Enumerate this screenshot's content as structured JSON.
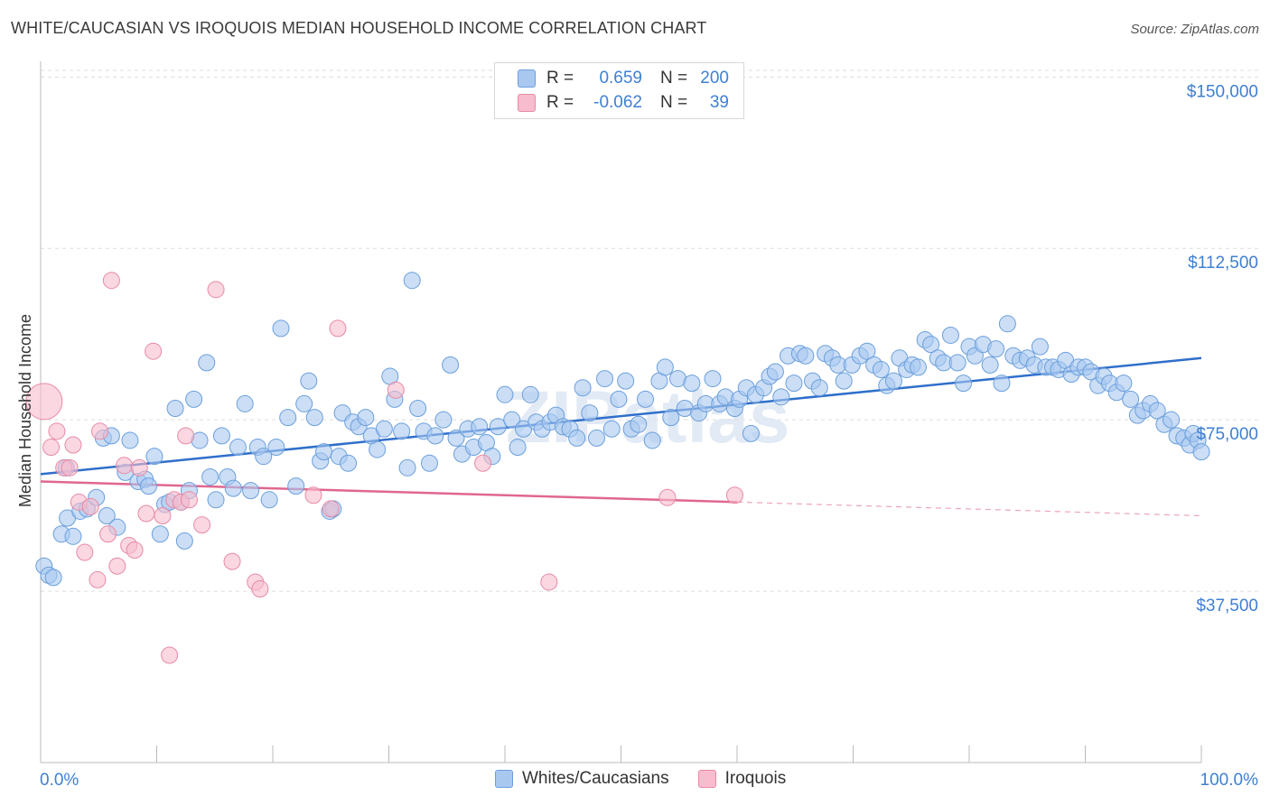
{
  "title": "WHITE/CAUCASIAN VS IROQUOIS MEDIAN HOUSEHOLD INCOME CORRELATION CHART",
  "source": "Source: ZipAtlas.com",
  "watermark": "ZIPatlas",
  "legend": {
    "rows": [
      {
        "r_label": "R =",
        "r_value": "0.659",
        "n_label": "N =",
        "n_value": "200"
      },
      {
        "r_label": "R =",
        "r_value": "-0.062",
        "n_label": "N =",
        "n_value": "39"
      }
    ]
  },
  "bottom_legend": {
    "series1": "Whites/Caucasians",
    "series2": "Iroquois"
  },
  "colors": {
    "blue_fill": "#a9c8f0",
    "blue_stroke": "#6b9fdc",
    "blue_line": "#2f6fcb",
    "pink_fill": "#f7bccd",
    "pink_stroke": "#e88aa6",
    "pink_line": "#e0678f",
    "axis_label": "#3f7fd3",
    "grid": "#dddddd"
  },
  "chart_data": {
    "type": "scatter",
    "title": "WHITE/CAUCASIAN VS IROQUOIS MEDIAN HOUSEHOLD INCOME CORRELATION CHART",
    "xlabel": "",
    "ylabel": "Median Household Income",
    "xlim": [
      0,
      100
    ],
    "ylim": [
      0,
      155000
    ],
    "x_tick_labels": [
      "0.0%",
      "100.0%"
    ],
    "y_ticks": [
      37500,
      75000,
      112500,
      150000
    ],
    "y_tick_labels": [
      "$37,500",
      "$75,000",
      "$112,500",
      "$150,000"
    ],
    "grid": true,
    "legend_position": "top-center",
    "series": [
      {
        "name": "Whites/Caucasians",
        "trend": {
          "x": [
            0,
            100
          ],
          "y": [
            63100,
            88500
          ],
          "dashed_from": null
        },
        "points": [
          [
            0.3,
            43000
          ],
          [
            0.7,
            41000
          ],
          [
            1.1,
            40500
          ],
          [
            1.8,
            50000
          ],
          [
            2.3,
            53500
          ],
          [
            2.2,
            64500
          ],
          [
            2.8,
            49500
          ],
          [
            3.4,
            55000
          ],
          [
            4.0,
            55500
          ],
          [
            4.8,
            58000
          ],
          [
            5.4,
            71000
          ],
          [
            5.7,
            54000
          ],
          [
            6.1,
            71500
          ],
          [
            6.6,
            51500
          ],
          [
            7.3,
            63500
          ],
          [
            7.7,
            70500
          ],
          [
            8.4,
            61500
          ],
          [
            9.0,
            62000
          ],
          [
            9.3,
            60500
          ],
          [
            9.8,
            67000
          ],
          [
            10.3,
            50000
          ],
          [
            10.7,
            56500
          ],
          [
            11.1,
            57000
          ],
          [
            11.6,
            77500
          ],
          [
            12.1,
            57000
          ],
          [
            12.4,
            48500
          ],
          [
            12.8,
            59500
          ],
          [
            13.2,
            79500
          ],
          [
            13.7,
            70500
          ],
          [
            14.3,
            87500
          ],
          [
            14.6,
            62500
          ],
          [
            15.1,
            57500
          ],
          [
            15.6,
            71500
          ],
          [
            16.1,
            62500
          ],
          [
            16.6,
            60000
          ],
          [
            17.0,
            69000
          ],
          [
            17.6,
            78500
          ],
          [
            18.1,
            59500
          ],
          [
            18.7,
            69000
          ],
          [
            19.2,
            67000
          ],
          [
            19.7,
            57500
          ],
          [
            20.3,
            69000
          ],
          [
            20.7,
            95000
          ],
          [
            21.3,
            75500
          ],
          [
            22.0,
            60500
          ],
          [
            22.7,
            78500
          ],
          [
            23.1,
            83500
          ],
          [
            23.6,
            75500
          ],
          [
            24.1,
            66000
          ],
          [
            24.4,
            68000
          ],
          [
            24.9,
            55000
          ],
          [
            25.2,
            55500
          ],
          [
            25.7,
            67000
          ],
          [
            26.0,
            76500
          ],
          [
            26.5,
            65500
          ],
          [
            26.9,
            74500
          ],
          [
            27.4,
            73500
          ],
          [
            28.0,
            75500
          ],
          [
            28.5,
            71500
          ],
          [
            29.0,
            68500
          ],
          [
            29.6,
            73000
          ],
          [
            30.1,
            84500
          ],
          [
            30.5,
            79500
          ],
          [
            31.1,
            72500
          ],
          [
            31.6,
            64500
          ],
          [
            32.0,
            105500
          ],
          [
            32.5,
            77500
          ],
          [
            33.0,
            72500
          ],
          [
            33.5,
            65500
          ],
          [
            34.0,
            71500
          ],
          [
            34.7,
            75000
          ],
          [
            35.3,
            87000
          ],
          [
            35.8,
            71000
          ],
          [
            36.3,
            67500
          ],
          [
            36.8,
            73000
          ],
          [
            37.3,
            69000
          ],
          [
            37.8,
            73500
          ],
          [
            38.4,
            70000
          ],
          [
            38.9,
            67000
          ],
          [
            39.4,
            73500
          ],
          [
            40.0,
            80500
          ],
          [
            40.6,
            75000
          ],
          [
            41.1,
            69000
          ],
          [
            41.6,
            73000
          ],
          [
            42.2,
            80500
          ],
          [
            42.7,
            74500
          ],
          [
            43.2,
            73000
          ],
          [
            43.9,
            74500
          ],
          [
            44.4,
            76000
          ],
          [
            45.0,
            73500
          ],
          [
            45.6,
            73000
          ],
          [
            46.2,
            71000
          ],
          [
            46.7,
            82000
          ],
          [
            47.3,
            76500
          ],
          [
            47.9,
            71000
          ],
          [
            48.6,
            84000
          ],
          [
            49.2,
            73000
          ],
          [
            49.8,
            79500
          ],
          [
            50.4,
            83500
          ],
          [
            50.9,
            73000
          ],
          [
            51.5,
            74000
          ],
          [
            52.1,
            79500
          ],
          [
            52.7,
            70500
          ],
          [
            53.3,
            83500
          ],
          [
            53.8,
            86500
          ],
          [
            54.3,
            75500
          ],
          [
            54.9,
            84000
          ],
          [
            55.5,
            77500
          ],
          [
            56.1,
            83000
          ],
          [
            56.7,
            76500
          ],
          [
            57.3,
            78500
          ],
          [
            57.9,
            84000
          ],
          [
            58.5,
            78500
          ],
          [
            59.0,
            80000
          ],
          [
            59.8,
            77500
          ],
          [
            60.2,
            79500
          ],
          [
            60.8,
            82000
          ],
          [
            61.2,
            72000
          ],
          [
            61.6,
            80500
          ],
          [
            62.3,
            82000
          ],
          [
            62.8,
            84500
          ],
          [
            63.3,
            85500
          ],
          [
            63.8,
            80000
          ],
          [
            64.4,
            89000
          ],
          [
            64.9,
            83000
          ],
          [
            65.4,
            89500
          ],
          [
            65.9,
            89000
          ],
          [
            66.5,
            83500
          ],
          [
            67.1,
            82000
          ],
          [
            67.6,
            89500
          ],
          [
            68.2,
            88500
          ],
          [
            68.7,
            87000
          ],
          [
            69.2,
            83500
          ],
          [
            69.9,
            87000
          ],
          [
            70.6,
            89000
          ],
          [
            71.2,
            90000
          ],
          [
            71.8,
            87000
          ],
          [
            72.4,
            86000
          ],
          [
            72.9,
            82500
          ],
          [
            73.5,
            83500
          ],
          [
            74.0,
            88500
          ],
          [
            74.6,
            86000
          ],
          [
            75.1,
            87000
          ],
          [
            75.6,
            86500
          ],
          [
            76.2,
            92500
          ],
          [
            76.7,
            91500
          ],
          [
            77.3,
            88500
          ],
          [
            77.8,
            87500
          ],
          [
            78.4,
            93500
          ],
          [
            79.0,
            87500
          ],
          [
            79.5,
            83000
          ],
          [
            80.0,
            91000
          ],
          [
            80.5,
            89000
          ],
          [
            81.2,
            91500
          ],
          [
            81.8,
            87000
          ],
          [
            82.3,
            90500
          ],
          [
            82.8,
            83000
          ],
          [
            83.3,
            96000
          ],
          [
            83.8,
            89000
          ],
          [
            84.4,
            88000
          ],
          [
            85.0,
            88500
          ],
          [
            85.6,
            87000
          ],
          [
            86.1,
            91000
          ],
          [
            86.6,
            86500
          ],
          [
            87.2,
            86500
          ],
          [
            87.7,
            86000
          ],
          [
            88.3,
            88000
          ],
          [
            88.8,
            85000
          ],
          [
            89.4,
            86500
          ],
          [
            90.0,
            86500
          ],
          [
            90.5,
            85500
          ],
          [
            91.1,
            82500
          ],
          [
            91.6,
            84500
          ],
          [
            92.1,
            83000
          ],
          [
            92.7,
            81000
          ],
          [
            93.3,
            83000
          ],
          [
            93.9,
            79500
          ],
          [
            94.5,
            76000
          ],
          [
            95.0,
            77000
          ],
          [
            95.6,
            78500
          ],
          [
            96.2,
            77000
          ],
          [
            96.8,
            74000
          ],
          [
            97.4,
            75000
          ],
          [
            97.9,
            71500
          ],
          [
            98.5,
            71000
          ],
          [
            99.0,
            69500
          ],
          [
            99.3,
            72000
          ],
          [
            99.7,
            70500
          ],
          [
            100.0,
            68000
          ]
        ]
      },
      {
        "name": "Iroquois",
        "trend": {
          "x": [
            0,
            100
          ],
          "y": [
            61500,
            54000
          ],
          "dashed_from": 60
        },
        "points": [
          [
            0.3,
            79000
          ],
          [
            0.9,
            69000
          ],
          [
            1.4,
            72500
          ],
          [
            2.0,
            64500
          ],
          [
            2.5,
            64500
          ],
          [
            2.8,
            69500
          ],
          [
            3.3,
            57000
          ],
          [
            3.8,
            46000
          ],
          [
            4.3,
            56000
          ],
          [
            4.9,
            40000
          ],
          [
            5.1,
            72500
          ],
          [
            5.8,
            50000
          ],
          [
            6.1,
            105500
          ],
          [
            6.6,
            43000
          ],
          [
            7.2,
            65000
          ],
          [
            7.6,
            47500
          ],
          [
            8.1,
            46500
          ],
          [
            8.5,
            64500
          ],
          [
            9.1,
            54500
          ],
          [
            9.7,
            90000
          ],
          [
            10.5,
            54000
          ],
          [
            11.1,
            23500
          ],
          [
            11.5,
            57500
          ],
          [
            12.1,
            57000
          ],
          [
            12.5,
            71500
          ],
          [
            12.8,
            57500
          ],
          [
            13.9,
            52000
          ],
          [
            15.1,
            103500
          ],
          [
            16.5,
            44000
          ],
          [
            18.5,
            39500
          ],
          [
            18.9,
            38000
          ],
          [
            23.5,
            58500
          ],
          [
            25.6,
            95000
          ],
          [
            25.0,
            55500
          ],
          [
            30.6,
            81500
          ],
          [
            38.1,
            65500
          ],
          [
            43.8,
            39500
          ],
          [
            54.0,
            58000
          ],
          [
            59.8,
            58500
          ]
        ]
      }
    ]
  }
}
